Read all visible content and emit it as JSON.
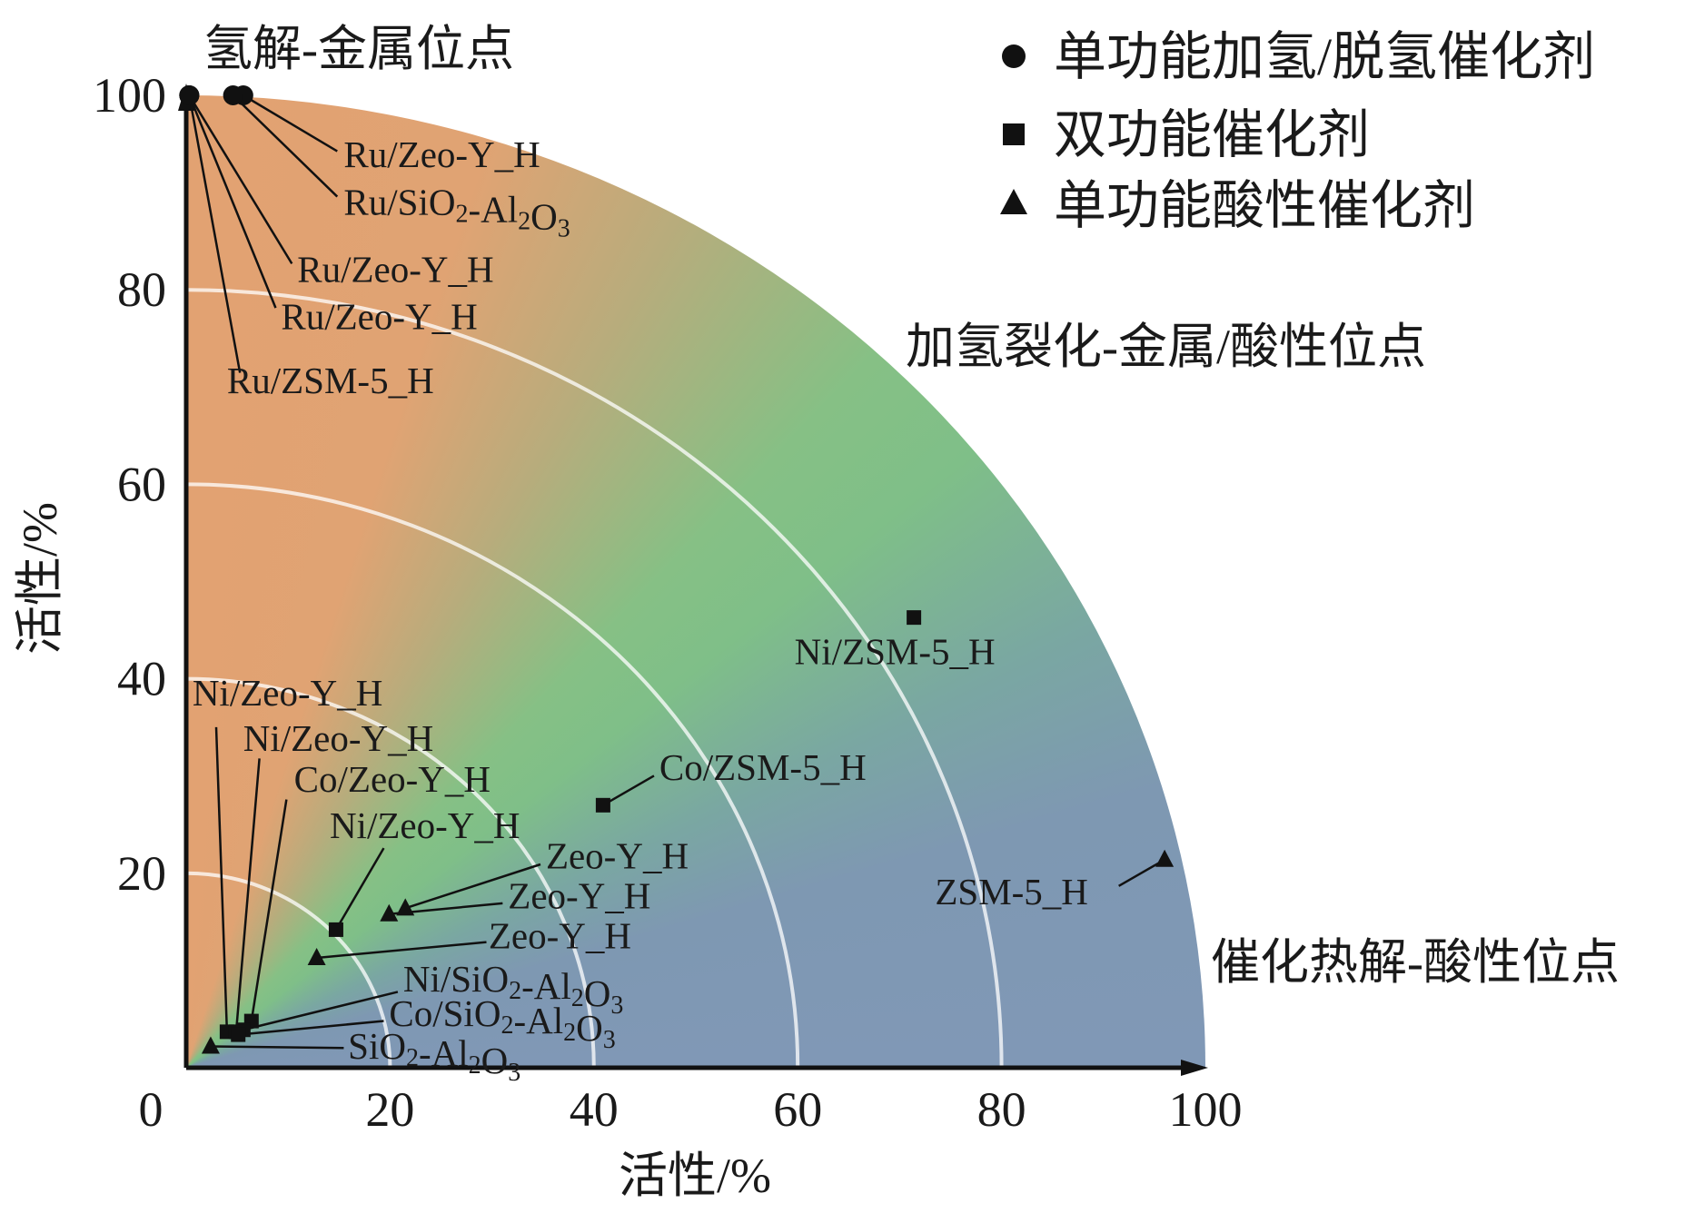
{
  "chart_data": {
    "type": "scatter",
    "xlabel": "活性/%",
    "ylabel": "活性/%",
    "xlim": [
      0,
      100
    ],
    "ylim": [
      0,
      100
    ],
    "xticks": [
      "0",
      "20",
      "40",
      "60",
      "80",
      "100"
    ],
    "yticks": [
      "20",
      "40",
      "60",
      "80",
      "100"
    ],
    "grid": "concentric arcs at 20, 40, 60, 80",
    "background": "quarter-disc angular gradient: orange near y-axis, green at middle, blue-gray near x-axis",
    "colors": {
      "orange": "#e2a272",
      "green": "#82c087",
      "blue": "#8098b6"
    },
    "region_labels": {
      "top": "氢解-金属位点",
      "middle": "加氢裂化-金属/酸性位点",
      "bottom": "催化热解-酸性位点"
    },
    "legend": {
      "placement": "top-right",
      "items": [
        {
          "marker": "circle",
          "label": "单功能加氢/脱氢催化剂"
        },
        {
          "marker": "square",
          "label": "双功能催化剂"
        },
        {
          "marker": "triangle",
          "label": "单功能酸性催化剂"
        }
      ]
    },
    "points": [
      {
        "label": "Ru/Zeo-Y_H",
        "marker": "circle",
        "x": 5.6,
        "y": 100
      },
      {
        "label": "Ru/SiO2-Al2O3",
        "marker": "circle",
        "x": 4.6,
        "y": 100
      },
      {
        "label": "Ru/Zeo-Y_H",
        "marker": "circle",
        "x": 0.3,
        "y": 100
      },
      {
        "label": "Ru/Zeo-Y_H",
        "marker": "circle",
        "x": 0.3,
        "y": 100
      },
      {
        "label": "Ru/ZSM-5_H",
        "marker": "circle",
        "x": 0.3,
        "y": 100
      },
      {
        "label": "Ni/ZSM-5_H",
        "marker": "square",
        "x": 71.4,
        "y": 46.3
      },
      {
        "label": "Co/ZSM-5_H",
        "marker": "square",
        "x": 40.9,
        "y": 27.0
      },
      {
        "label": "ZSM-5_H",
        "marker": "triangle",
        "x": 96.0,
        "y": 21.4
      },
      {
        "label": "Ni/Zeo-Y_H",
        "marker": "square",
        "x": 4.0,
        "y": 3.7
      },
      {
        "label": "Ni/Zeo-Y_H",
        "marker": "square",
        "x": 4.9,
        "y": 3.7
      },
      {
        "label": "Co/Zeo-Y_H",
        "marker": "square",
        "x": 6.4,
        "y": 4.8
      },
      {
        "label": "Ni/Zeo-Y_H",
        "marker": "square",
        "x": 14.7,
        "y": 14.2
      },
      {
        "label": "Zeo-Y_H",
        "marker": "triangle",
        "x": 21.5,
        "y": 16.4
      },
      {
        "label": "Zeo-Y_H",
        "marker": "triangle",
        "x": 19.9,
        "y": 15.8
      },
      {
        "label": "Zeo-Y_H",
        "marker": "triangle",
        "x": 12.8,
        "y": 11.3
      },
      {
        "label": "Ni/SiO2-Al2O3",
        "marker": "square",
        "x": 5.6,
        "y": 3.9
      },
      {
        "label": "Co/SiO2-Al2O3",
        "marker": "square",
        "x": 5.1,
        "y": 3.4
      },
      {
        "label": "SiO2-Al2O3",
        "marker": "triangle",
        "x": 2.4,
        "y": 2.2
      }
    ]
  }
}
